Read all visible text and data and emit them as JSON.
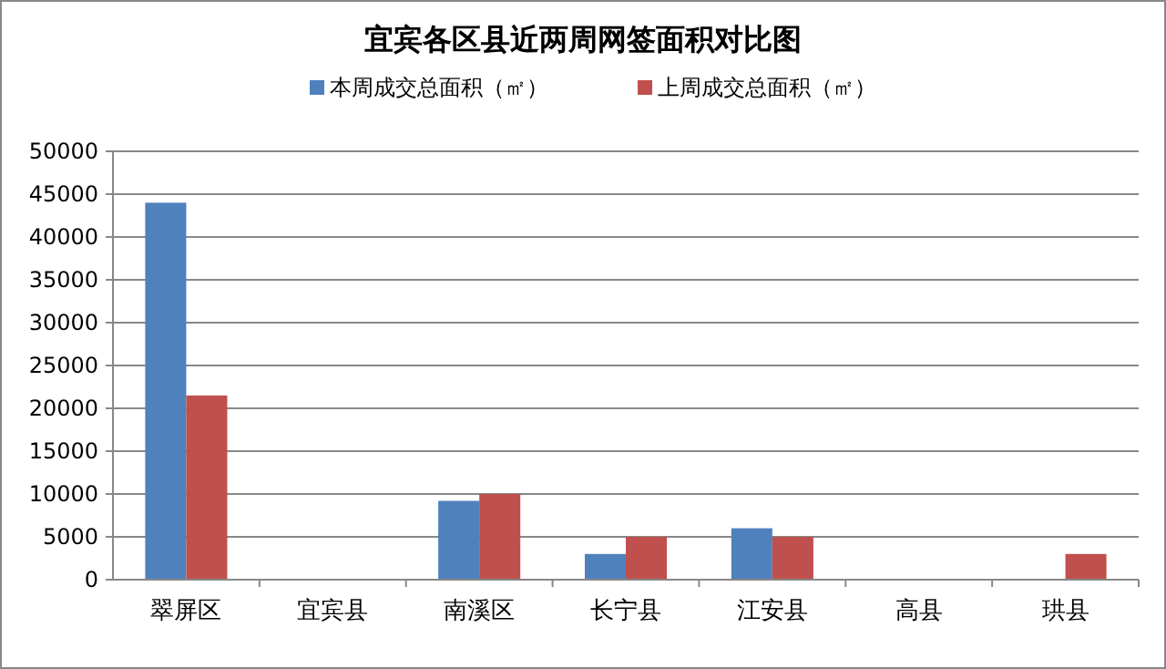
{
  "chart_data": {
    "type": "bar",
    "title": "宜宾各区县近两周网签面积对比图",
    "categories": [
      "翠屏区",
      "宜宾县",
      "南溪区",
      "长宁县",
      "江安县",
      "高县",
      "珙县"
    ],
    "series": [
      {
        "name": "本周成交总面积（㎡）",
        "color": "#4f81bd",
        "values": [
          44000,
          0,
          9200,
          3000,
          6000,
          null,
          null
        ]
      },
      {
        "name": "上周成交总面积（㎡）",
        "color": "#c0504d",
        "values": [
          21500,
          0,
          10000,
          5000,
          5000,
          null,
          3000
        ]
      }
    ],
    "ylim": [
      0,
      50000
    ],
    "yticks": [
      0,
      5000,
      10000,
      15000,
      20000,
      25000,
      30000,
      35000,
      40000,
      45000,
      50000
    ],
    "grid": "y",
    "legend": "top"
  }
}
